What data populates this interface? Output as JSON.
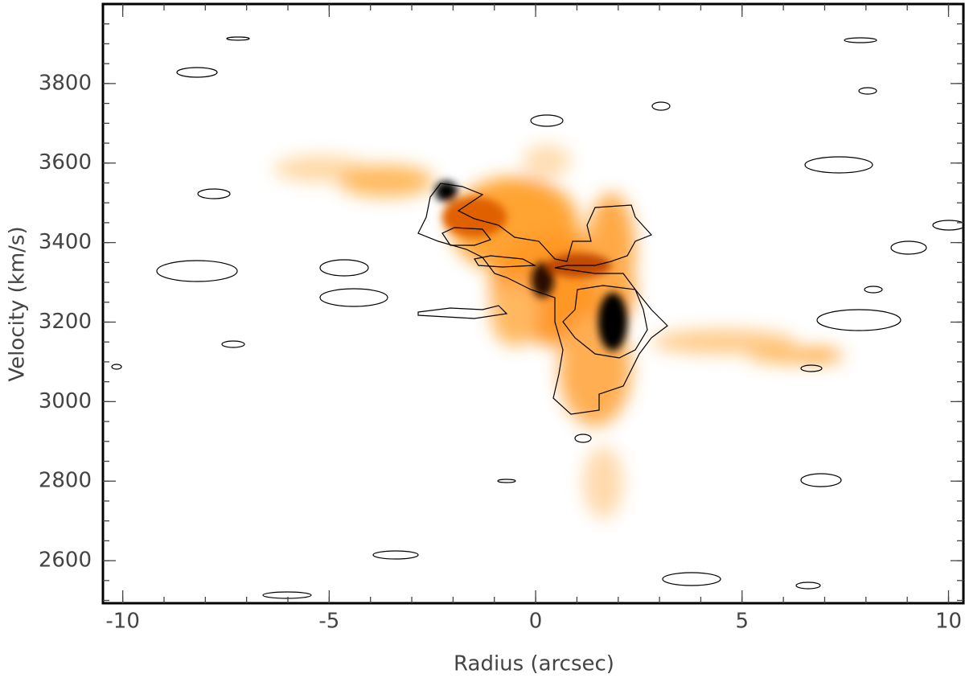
{
  "chart_data": {
    "type": "pv-diagram",
    "x_label": "Radius (arcsec)",
    "y_label": "Velocity (km/s)",
    "xlim": [
      -10.48,
      10.36
    ],
    "ylim": [
      2493,
      4000
    ],
    "xticks": [
      -10,
      -5,
      0,
      5,
      10
    ],
    "yticks": [
      2600,
      2800,
      3000,
      3200,
      3400,
      3600,
      3800
    ],
    "xminorticks": [
      -10,
      -9,
      -8,
      -7,
      -6,
      -5,
      -4,
      -3,
      -2,
      -1,
      0,
      1,
      2,
      3,
      4,
      5,
      6,
      7,
      8,
      9,
      10
    ],
    "yminorticks": [
      2500,
      2550,
      2600,
      2650,
      2700,
      2750,
      2800,
      2850,
      2900,
      2950,
      3000,
      3050,
      3100,
      3150,
      3200,
      3250,
      3300,
      3350,
      3400,
      3450,
      3500,
      3550,
      3600,
      3650,
      3700,
      3750,
      3800,
      3850,
      3900,
      3950
    ]
  }
}
